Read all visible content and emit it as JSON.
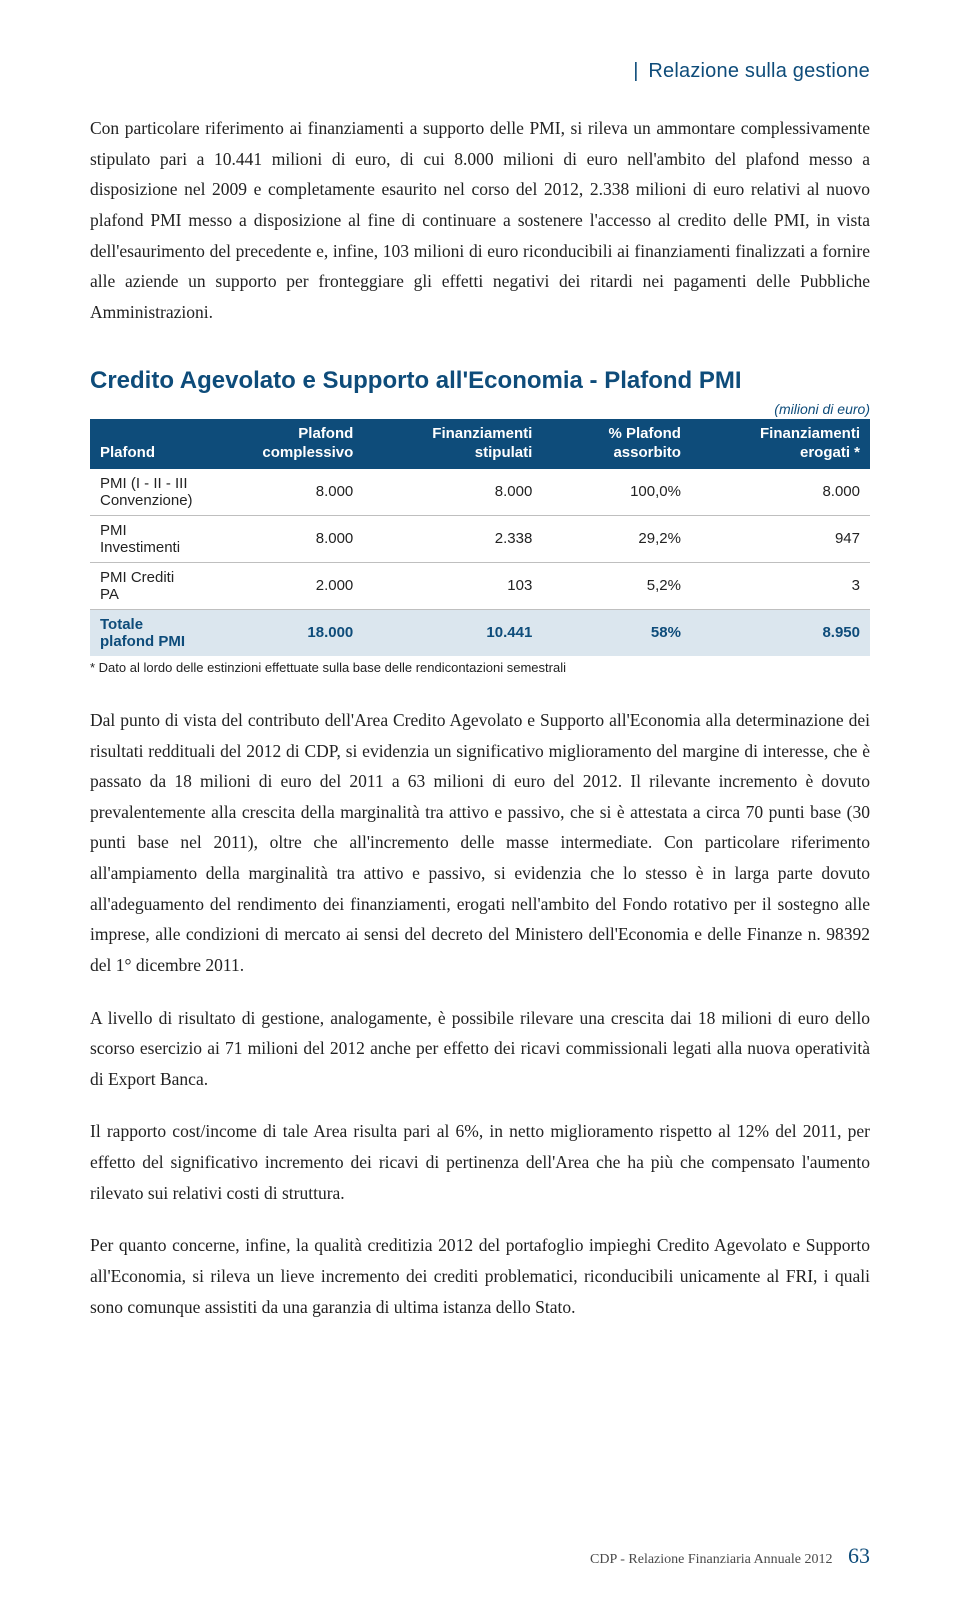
{
  "header": {
    "label": "Relazione sulla gestione"
  },
  "paragraphs": {
    "p1": "Con particolare riferimento ai finanziamenti a supporto delle PMI, si rileva un ammontare complessivamente stipulato pari a 10.441 milioni di euro, di cui 8.000 milioni di euro nell'ambito del plafond messo a disposizione nel 2009 e completamente esaurito nel corso del 2012, 2.338 milioni di euro relativi al nuovo plafond PMI messo a disposizione al fine di continuare a sostenere l'accesso al credito delle PMI, in vista dell'esaurimento del precedente e, infine, 103 milioni di euro riconducibili ai finanziamenti finalizzati a fornire alle aziende un supporto per fronteggiare gli effetti negativi dei ritardi nei pagamenti delle Pubbliche Amministrazioni.",
    "p2": "Dal punto di vista del contributo dell'Area Credito Agevolato e Supporto all'Economia alla determinazione dei risultati reddituali del 2012 di CDP, si evidenzia un significativo miglioramento del margine di interesse, che è passato da 18 milioni di euro del 2011 a 63 milioni di euro del 2012. Il rilevante incremento è dovuto prevalentemente alla crescita della marginalità tra attivo e passivo, che si è attestata a circa 70 punti base (30 punti base nel 2011), oltre che all'incremento delle masse intermediate. Con particolare riferimento all'ampiamento della marginalità tra attivo e passivo, si evidenzia che lo stesso è in larga parte dovuto all'adeguamento del rendimento dei finanziamenti, erogati nell'ambito del Fondo rotativo per il sostegno alle imprese, alle condizioni di mercato ai sensi del decreto del Ministero dell'Economia e delle Finanze n. 98392 del 1° dicembre 2011.",
    "p3": "A livello di risultato di gestione, analogamente, è possibile rilevare una crescita dai 18 milioni di euro dello scorso esercizio ai 71 milioni del 2012 anche per effetto dei ricavi commissionali legati alla nuova operatività di Export Banca.",
    "p4": "Il rapporto cost/income di tale Area risulta pari al 6%, in netto miglioramento rispetto al 12% del 2011, per effetto del significativo incremento dei ricavi di pertinenza dell'Area che ha più che compensato l'aumento rilevato sui relativi costi di struttura.",
    "p5": "Per quanto concerne, infine, la qualità creditizia 2012 del portafoglio impieghi Credito Agevolato e Supporto all'Economia, si rileva un lieve incremento dei crediti problematici, riconducibili unicamente al FRI, i quali sono comunque assistiti da una garanzia di ultima istanza dello Stato."
  },
  "table": {
    "title": "Credito Agevolato e Supporto all'Economia - Plafond PMI",
    "unit": "(milioni di euro)",
    "columns": {
      "c0": "Plafond",
      "c1a": "Plafond",
      "c1b": "complessivo",
      "c2a": "Finanziamenti",
      "c2b": "stipulati",
      "c3a": "% Plafond",
      "c3b": "assorbito",
      "c4a": "Finanziamenti",
      "c4b": "erogati *"
    },
    "rows": [
      {
        "label": "PMI (I - II - III Convenzione)",
        "plafond": "8.000",
        "stipulati": "8.000",
        "pct": "100,0%",
        "erogati": "8.000"
      },
      {
        "label": "PMI Investimenti",
        "plafond": "8.000",
        "stipulati": "2.338",
        "pct": "29,2%",
        "erogati": "947"
      },
      {
        "label": "PMI Crediti PA",
        "plafond": "2.000",
        "stipulati": "103",
        "pct": "5,2%",
        "erogati": "3"
      }
    ],
    "total": {
      "label": "Totale plafond PMI",
      "plafond": "18.000",
      "stipulati": "10.441",
      "pct": "58%",
      "erogati": "8.950"
    },
    "footnote": "* Dato al lordo delle estinzioni effettuate sulla base delle rendicontazioni semestrali"
  },
  "footer": {
    "text": "CDP - Relazione Finanziaria Annuale 2012",
    "page": "63"
  },
  "colors": {
    "brand": "#0e4c7a",
    "total_bg": "#dbe6ee",
    "text": "#222222",
    "rule": "#bfbfbf"
  }
}
